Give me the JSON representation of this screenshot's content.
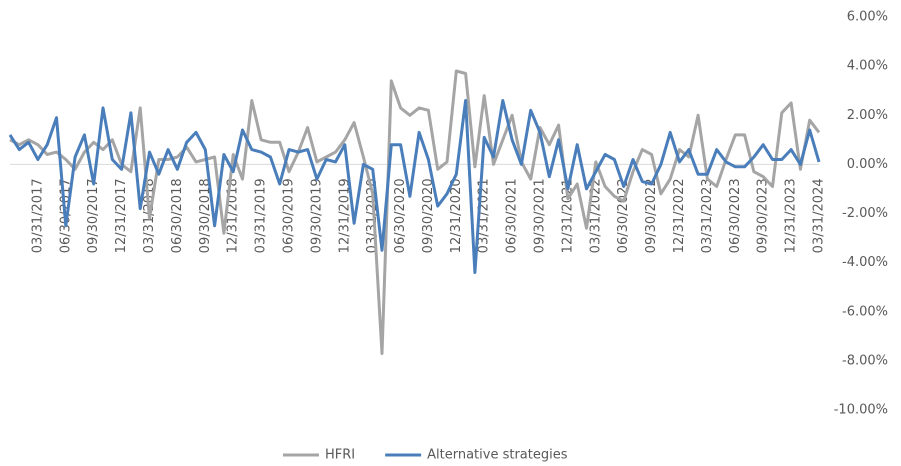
{
  "chart_data": {
    "type": "line",
    "categories": [
      null,
      null,
      null,
      "03/31/2017",
      null,
      null,
      "06/30/2017",
      null,
      null,
      "09/30/2017",
      null,
      null,
      "12/31/2017",
      null,
      null,
      "03/31/2018",
      null,
      null,
      "06/30/2018",
      null,
      null,
      "09/30/2018",
      null,
      null,
      "12/31/2018",
      null,
      null,
      "03/31/2019",
      null,
      null,
      "06/30/2019",
      null,
      null,
      "09/30/2019",
      null,
      null,
      "12/31/2019",
      null,
      null,
      "03/31/2020",
      null,
      null,
      "06/30/2020",
      null,
      null,
      "09/30/2020",
      null,
      null,
      "12/31/2020",
      null,
      null,
      "03/31/2021",
      null,
      null,
      "06/30/2021",
      null,
      null,
      "09/30/2021",
      null,
      null,
      "12/31/2021",
      null,
      null,
      "03/31/2022",
      null,
      null,
      "06/30/2022",
      null,
      null,
      "09/30/2022",
      null,
      null,
      "12/31/2022",
      null,
      null,
      "03/31/2023",
      null,
      null,
      "06/30/2023",
      null,
      null,
      "09/30/2023",
      null,
      null,
      "12/31/2023",
      null,
      null,
      "03/31/2024"
    ],
    "series": [
      {
        "name": "HFRI",
        "color": "#a5a5a5",
        "values": [
          1.0,
          0.8,
          1.0,
          0.8,
          0.4,
          0.5,
          0.2,
          -0.2,
          0.5,
          0.9,
          0.6,
          1.0,
          0.0,
          -0.3,
          2.3,
          -2.2,
          0.2,
          0.2,
          0.3,
          0.7,
          0.1,
          0.2,
          0.3,
          -2.8,
          0.4,
          -0.6,
          2.6,
          1.0,
          0.9,
          0.9,
          -0.3,
          0.5,
          1.5,
          0.1,
          0.3,
          0.5,
          1.0,
          1.7,
          0.3,
          -1.2,
          -7.7,
          3.4,
          2.3,
          2.0,
          2.3,
          2.2,
          -0.2,
          0.1,
          3.8,
          3.7,
          -0.1,
          2.8,
          0.0,
          1.0,
          2.0,
          0.1,
          -0.6,
          1.5,
          0.8,
          1.6,
          -1.4,
          -0.8,
          -2.6,
          0.1,
          -0.9,
          -1.3,
          -1.5,
          -0.3,
          0.6,
          0.4,
          -1.2,
          -0.6,
          0.6,
          0.3,
          2.0,
          -0.6,
          -0.9,
          0.2,
          1.2,
          1.2,
          -0.3,
          -0.5,
          -0.9,
          2.1,
          2.5,
          -0.2,
          1.8,
          1.3
        ]
      },
      {
        "name": "Alternative strategies",
        "color": "#4a7ebb",
        "values": [
          1.2,
          0.6,
          0.9,
          0.2,
          0.8,
          1.9,
          -2.5,
          0.3,
          1.2,
          -0.8,
          2.3,
          0.2,
          -0.2,
          2.1,
          -1.8,
          0.5,
          -0.4,
          0.6,
          -0.2,
          0.9,
          1.3,
          0.6,
          -2.5,
          0.4,
          -0.3,
          1.4,
          0.6,
          0.5,
          0.3,
          -0.8,
          0.6,
          0.5,
          0.6,
          -0.6,
          0.2,
          0.1,
          0.8,
          -2.4,
          0.0,
          -0.2,
          -3.5,
          0.8,
          0.8,
          -1.3,
          1.3,
          0.2,
          -1.7,
          -1.2,
          -0.4,
          2.6,
          -4.4,
          1.1,
          0.3,
          2.6,
          1.0,
          0.0,
          2.2,
          1.3,
          -0.5,
          1.0,
          -1.0,
          0.8,
          -1.0,
          -0.3,
          0.4,
          0.2,
          -0.9,
          0.2,
          -0.7,
          -0.8,
          0.0,
          1.3,
          0.1,
          0.6,
          -0.4,
          -0.4,
          0.6,
          0.1,
          -0.1,
          -0.1,
          0.3,
          0.8,
          0.2,
          0.2,
          0.6,
          0.0,
          1.4,
          0.1
        ]
      }
    ],
    "ylim": [
      -10,
      6
    ],
    "yticks": [
      {
        "value": 6,
        "label": "6.00%"
      },
      {
        "value": 4,
        "label": "4.00%"
      },
      {
        "value": 2,
        "label": "2.00%"
      },
      {
        "value": 0,
        "label": "0.00%"
      },
      {
        "value": -2,
        "label": "-2.00%"
      },
      {
        "value": -4,
        "label": "-4.00%"
      },
      {
        "value": -6,
        "label": "-6.00%"
      },
      {
        "value": -8,
        "label": "-8.00%"
      },
      {
        "value": -10,
        "label": "-10.00%"
      }
    ],
    "legend": "bottom"
  }
}
